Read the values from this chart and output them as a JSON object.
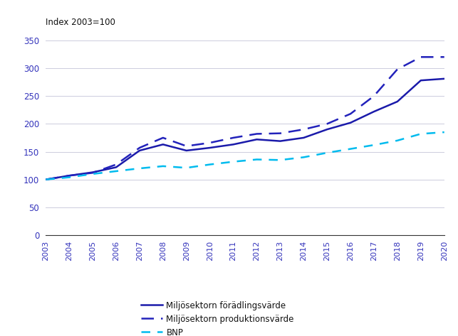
{
  "years": [
    2003,
    2004,
    2005,
    2006,
    2007,
    2008,
    2009,
    2010,
    2011,
    2012,
    2013,
    2014,
    2015,
    2016,
    2017,
    2018,
    2019,
    2020
  ],
  "foradlingsvarde": [
    100,
    107,
    113,
    122,
    152,
    163,
    152,
    157,
    163,
    172,
    169,
    175,
    190,
    202,
    222,
    240,
    278,
    281
  ],
  "produktionsvarde": [
    100,
    107,
    112,
    127,
    157,
    175,
    160,
    166,
    175,
    182,
    183,
    190,
    200,
    218,
    250,
    298,
    320,
    320
  ],
  "bnp": [
    100,
    104,
    110,
    115,
    120,
    124,
    121,
    127,
    132,
    136,
    135,
    140,
    148,
    155,
    162,
    170,
    182,
    185
  ],
  "foradlingsvarde_color": "#1a1aaa",
  "produktionsvarde_color": "#2222bb",
  "bnp_color": "#00bbee",
  "ylabel": "Index 2003=100",
  "ylim": [
    0,
    350
  ],
  "yticks": [
    0,
    50,
    100,
    150,
    200,
    250,
    300,
    350
  ],
  "legend_labels": [
    "Miljösektorn förädlingsvärde",
    "Miljösektorn produktionsvärde",
    "BNP"
  ],
  "grid_color": "#ccccdd",
  "tick_color": "#3333bb",
  "background_color": "#ffffff"
}
